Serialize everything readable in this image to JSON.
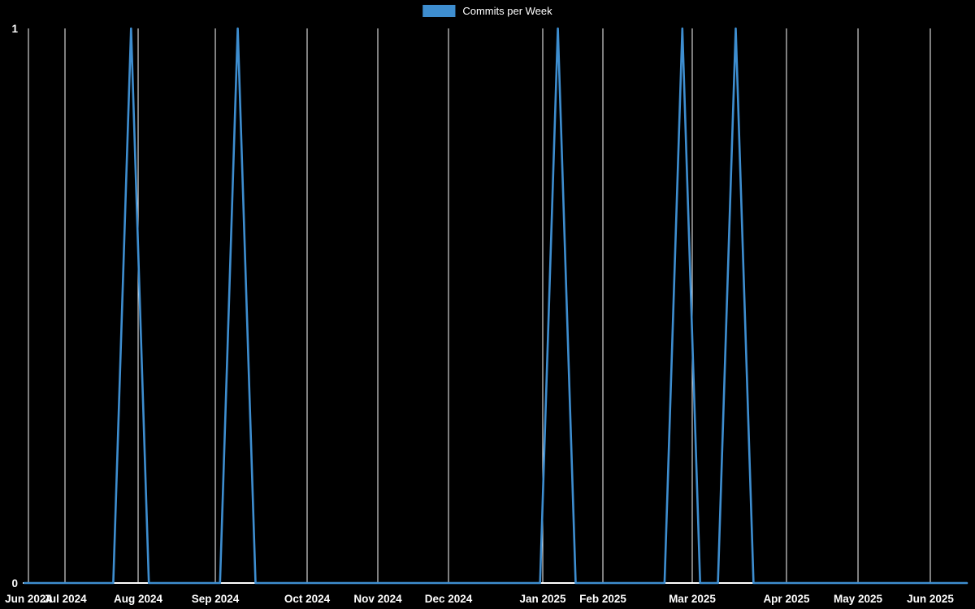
{
  "page": {
    "background_color": "#000000",
    "text_color": "#ffffff",
    "grid_color": "#ffffff"
  },
  "legend": {
    "label": "Commits per Week",
    "swatch_color": "#3e8ed0"
  },
  "chart_data": {
    "type": "line",
    "title": "Commits per Week",
    "legend_position": "top-center",
    "line_color": "#3e8ed0",
    "grid": true,
    "ylabel": "",
    "xlabel": "",
    "ylim": [
      0,
      1
    ],
    "y_ticks": [
      0,
      1
    ],
    "x_tick_labels": [
      "Jun 2024",
      "Jul 2024",
      "Aug 2024",
      "Sep 2024",
      "Oct 2024",
      "Nov 2024",
      "Dec 2024",
      "Jan 2025",
      "Feb 2025",
      "Mar 2025",
      "Apr 2025",
      "May 2025",
      "Jun 2025"
    ],
    "x_tick_positions": [
      0.0043,
      0.0431,
      0.1207,
      0.2026,
      0.3,
      0.375,
      0.45,
      0.55,
      0.6138,
      0.7086,
      0.8086,
      0.8845,
      0.9612
    ],
    "x_range": [
      "Jun 2024",
      "Jun 2025"
    ],
    "series": [
      {
        "name": "Commits per Week",
        "unit": "commits",
        "sampling": "weekly",
        "values": [
          0,
          0,
          0,
          0,
          0,
          0,
          1,
          0,
          0,
          0,
          0,
          0,
          1,
          0,
          0,
          0,
          0,
          0,
          0,
          0,
          0,
          0,
          0,
          0,
          0,
          0,
          0,
          0,
          0,
          0,
          1,
          0,
          0,
          0,
          0,
          0,
          0,
          1,
          0,
          0,
          1,
          0,
          0,
          0,
          0,
          0,
          0,
          0,
          0,
          0,
          0,
          0,
          0,
          0
        ]
      }
    ]
  }
}
